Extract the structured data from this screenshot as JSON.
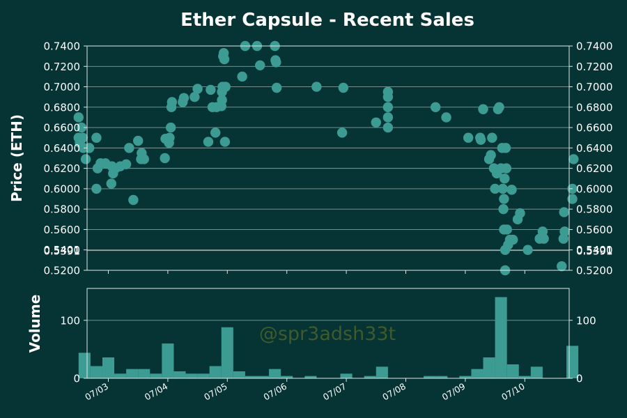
{
  "chart_data": [
    {
      "type": "scatter",
      "title": "Ether Capsule - Recent Sales",
      "ylabel": "Price (ETH)",
      "xlabel": "",
      "ylim": [
        0.52,
        0.74
      ],
      "y_ticks": [
        "0.5200",
        "0.5400",
        "0.5600",
        "0.5800",
        "0.6000",
        "0.6200",
        "0.6400",
        "0.6600",
        "0.6800",
        "0.7000",
        "0.7200",
        "0.7400"
      ],
      "y_extra_ticks": [
        {
          "value": 0.5401,
          "label": "0.5401"
        },
        {
          "value": 0.5391,
          "label": "0.5391"
        }
      ],
      "reference_line": 0.5396,
      "grid": true,
      "point_color": "#3c9c94",
      "x_ticks": [
        "07/03",
        "07/04",
        "07/05",
        "07/06",
        "07/07",
        "07/08",
        "07/09",
        "07/10"
      ],
      "points": [
        [
          2.5,
          0.67
        ],
        [
          2.5,
          0.65
        ],
        [
          2.52,
          0.645
        ],
        [
          2.55,
          0.66
        ],
        [
          2.57,
          0.65
        ],
        [
          2.58,
          0.64
        ],
        [
          2.62,
          0.629
        ],
        [
          2.68,
          0.64
        ],
        [
          2.8,
          0.65
        ],
        [
          2.8,
          0.6
        ],
        [
          2.82,
          0.62
        ],
        [
          2.87,
          0.625
        ],
        [
          2.95,
          0.625
        ],
        [
          3.05,
          0.605
        ],
        [
          3.06,
          0.622
        ],
        [
          3.08,
          0.615
        ],
        [
          3.12,
          0.62
        ],
        [
          3.2,
          0.622
        ],
        [
          3.3,
          0.624
        ],
        [
          3.35,
          0.64
        ],
        [
          3.42,
          0.589
        ],
        [
          3.5,
          0.647
        ],
        [
          3.55,
          0.629
        ],
        [
          3.56,
          0.635
        ],
        [
          3.6,
          0.629
        ],
        [
          3.95,
          0.63
        ],
        [
          3.96,
          0.649
        ],
        [
          4.02,
          0.645
        ],
        [
          4.03,
          0.65
        ],
        [
          4.05,
          0.66
        ],
        [
          4.06,
          0.68
        ],
        [
          4.07,
          0.685
        ],
        [
          4.25,
          0.685
        ],
        [
          4.27,
          0.689
        ],
        [
          4.45,
          0.69
        ],
        [
          4.5,
          0.698
        ],
        [
          4.68,
          0.646
        ],
        [
          4.72,
          0.697
        ],
        [
          4.75,
          0.68
        ],
        [
          4.8,
          0.655
        ],
        [
          4.82,
          0.68
        ],
        [
          4.9,
          0.681
        ],
        [
          4.91,
          0.687
        ],
        [
          4.91,
          0.695
        ],
        [
          4.92,
          0.7
        ],
        [
          4.93,
          0.73
        ],
        [
          4.94,
          0.733
        ],
        [
          4.95,
          0.727
        ],
        [
          4.96,
          0.646
        ],
        [
          4.97,
          0.7
        ],
        [
          5.25,
          0.71
        ],
        [
          5.3,
          0.74
        ],
        [
          5.5,
          0.74
        ],
        [
          5.55,
          0.721
        ],
        [
          5.8,
          0.74
        ],
        [
          5.81,
          0.726
        ],
        [
          5.82,
          0.724
        ],
        [
          5.83,
          0.699
        ],
        [
          6.5,
          0.7
        ],
        [
          6.93,
          0.655
        ],
        [
          6.95,
          0.699
        ],
        [
          7.5,
          0.665
        ],
        [
          7.7,
          0.695
        ],
        [
          7.7,
          0.69
        ],
        [
          7.7,
          0.68
        ],
        [
          7.7,
          0.67
        ],
        [
          7.7,
          0.66
        ],
        [
          8.5,
          0.68
        ],
        [
          8.68,
          0.67
        ],
        [
          9.05,
          0.65
        ],
        [
          9.25,
          0.65
        ],
        [
          9.26,
          0.648
        ],
        [
          9.3,
          0.678
        ],
        [
          9.4,
          0.629
        ],
        [
          9.43,
          0.633
        ],
        [
          9.45,
          0.65
        ],
        [
          9.48,
          0.62
        ],
        [
          9.5,
          0.6
        ],
        [
          9.53,
          0.615
        ],
        [
          9.55,
          0.678
        ],
        [
          9.57,
          0.68
        ],
        [
          9.6,
          0.62
        ],
        [
          9.62,
          0.64
        ],
        [
          9.63,
          0.6
        ],
        [
          9.64,
          0.58
        ],
        [
          9.65,
          0.56
        ],
        [
          9.65,
          0.59
        ],
        [
          9.66,
          0.61
        ],
        [
          9.67,
          0.54
        ],
        [
          9.67,
          0.52
        ],
        [
          9.68,
          0.64
        ],
        [
          9.69,
          0.62
        ],
        [
          9.7,
          0.56
        ],
        [
          9.72,
          0.545
        ],
        [
          9.75,
          0.55
        ],
        [
          9.78,
          0.599
        ],
        [
          9.8,
          0.55
        ],
        [
          9.88,
          0.57
        ],
        [
          9.92,
          0.576
        ],
        [
          10.05,
          0.54
        ],
        [
          10.25,
          0.551
        ],
        [
          10.3,
          0.558
        ],
        [
          10.32,
          0.551
        ],
        [
          10.62,
          0.524
        ],
        [
          10.65,
          0.551
        ],
        [
          10.66,
          0.577
        ],
        [
          10.67,
          0.558
        ],
        [
          10.8,
          0.59
        ],
        [
          10.8,
          0.6
        ],
        [
          10.82,
          0.629
        ]
      ]
    },
    {
      "type": "bar",
      "ylabel": "Volume",
      "xlabel": "",
      "ylim": [
        0,
        155
      ],
      "y_ticks": [
        "0",
        "100"
      ],
      "grid": true,
      "bar_color": "#3c9c94",
      "bins": [
        [
          2.5,
          2.7,
          44
        ],
        [
          2.7,
          2.9,
          21
        ],
        [
          2.9,
          3.1,
          36
        ],
        [
          3.1,
          3.3,
          8
        ],
        [
          3.3,
          3.5,
          16
        ],
        [
          3.5,
          3.7,
          16
        ],
        [
          3.7,
          3.9,
          8
        ],
        [
          3.9,
          4.1,
          60
        ],
        [
          4.1,
          4.3,
          12
        ],
        [
          4.3,
          4.5,
          8
        ],
        [
          4.5,
          4.7,
          8
        ],
        [
          4.7,
          4.9,
          21
        ],
        [
          4.9,
          5.1,
          88
        ],
        [
          5.1,
          5.3,
          12
        ],
        [
          5.3,
          5.5,
          4
        ],
        [
          5.5,
          5.7,
          4
        ],
        [
          5.7,
          5.9,
          16
        ],
        [
          5.9,
          6.1,
          4
        ],
        [
          6.3,
          6.5,
          4
        ],
        [
          6.9,
          7.1,
          8
        ],
        [
          7.3,
          7.5,
          4
        ],
        [
          7.5,
          7.7,
          20
        ],
        [
          8.3,
          8.5,
          4
        ],
        [
          8.5,
          8.7,
          4
        ],
        [
          8.9,
          9.1,
          4
        ],
        [
          9.1,
          9.3,
          16
        ],
        [
          9.3,
          9.5,
          36
        ],
        [
          9.5,
          9.7,
          140
        ],
        [
          9.7,
          9.9,
          24
        ],
        [
          9.9,
          10.1,
          4
        ],
        [
          10.1,
          10.3,
          20
        ],
        [
          10.7,
          10.9,
          56
        ]
      ]
    }
  ],
  "watermark": "@spr3adsh33t"
}
